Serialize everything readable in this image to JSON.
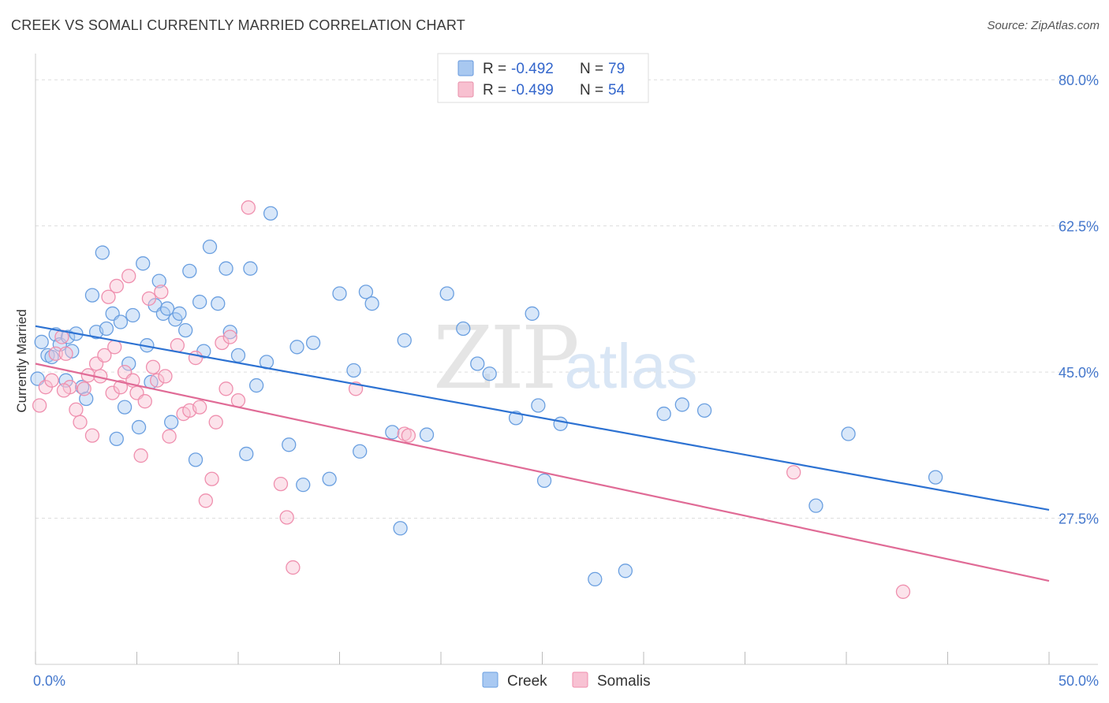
{
  "header": {
    "title": "CREEK VS SOMALI CURRENTLY MARRIED CORRELATION CHART",
    "source": "Source: ZipAtlas.com"
  },
  "watermark": {
    "zip": "ZIP",
    "atlas": "atlas"
  },
  "legend": {
    "rows": [
      {
        "r_label": "R = ",
        "r_value": "-0.492",
        "n_label": "N = ",
        "n_value": "79",
        "color": "#a8c8f0",
        "stroke": "#6699dd"
      },
      {
        "r_label": "R = ",
        "r_value": "-0.499",
        "n_label": "N = ",
        "n_value": "54",
        "color": "#f8c0d0",
        "stroke": "#e890aa"
      }
    ]
  },
  "chart_data": {
    "type": "scatter",
    "title": "CREEK VS SOMALI CURRENTLY MARRIED CORRELATION CHART",
    "ylabel": "Currently Married",
    "xlabel": "",
    "xlim": [
      0,
      50
    ],
    "ylim": [
      10,
      82
    ],
    "x_tick_labels": [
      "0.0%",
      "50.0%"
    ],
    "y_ticks": [
      27.5,
      45.0,
      62.5,
      80.0
    ],
    "y_tick_labels": [
      "27.5%",
      "45.0%",
      "62.5%",
      "80.0%"
    ],
    "grid": true,
    "legend_position": "top-center",
    "series": [
      {
        "name": "Creek",
        "color": "#6a9fe0",
        "fill": "#a9c9f2",
        "trend": {
          "x": [
            0,
            50
          ],
          "y": [
            50.5,
            28.5
          ],
          "color": "#2d72d2"
        },
        "points": [
          [
            0.1,
            44.2
          ],
          [
            0.3,
            48.6
          ],
          [
            0.6,
            47.0
          ],
          [
            0.8,
            46.8
          ],
          [
            1.0,
            49.5
          ],
          [
            1.2,
            48.3
          ],
          [
            1.5,
            44.0
          ],
          [
            1.6,
            49.2
          ],
          [
            1.8,
            47.5
          ],
          [
            2.0,
            49.6
          ],
          [
            2.3,
            43.2
          ],
          [
            2.5,
            41.8
          ],
          [
            2.8,
            54.2
          ],
          [
            3.0,
            49.8
          ],
          [
            3.3,
            59.3
          ],
          [
            3.5,
            50.2
          ],
          [
            3.8,
            52.0
          ],
          [
            4.0,
            37.0
          ],
          [
            4.2,
            51.0
          ],
          [
            4.4,
            40.8
          ],
          [
            4.6,
            46.0
          ],
          [
            4.8,
            51.8
          ],
          [
            5.1,
            38.4
          ],
          [
            5.3,
            58.0
          ],
          [
            5.5,
            48.2
          ],
          [
            5.7,
            43.8
          ],
          [
            5.9,
            53.0
          ],
          [
            6.1,
            55.9
          ],
          [
            6.3,
            52.0
          ],
          [
            6.5,
            52.6
          ],
          [
            6.7,
            39.0
          ],
          [
            6.9,
            51.3
          ],
          [
            7.1,
            52.0
          ],
          [
            7.4,
            50.0
          ],
          [
            7.6,
            57.1
          ],
          [
            7.9,
            34.5
          ],
          [
            8.1,
            53.4
          ],
          [
            8.3,
            47.5
          ],
          [
            8.6,
            60.0
          ],
          [
            9.0,
            53.2
          ],
          [
            9.4,
            57.4
          ],
          [
            9.6,
            49.8
          ],
          [
            10.0,
            47.0
          ],
          [
            10.4,
            35.2
          ],
          [
            10.6,
            57.4
          ],
          [
            10.9,
            43.4
          ],
          [
            11.4,
            46.2
          ],
          [
            11.6,
            64.0
          ],
          [
            12.5,
            36.3
          ],
          [
            12.9,
            48.0
          ],
          [
            13.2,
            31.5
          ],
          [
            13.7,
            48.5
          ],
          [
            14.5,
            32.2
          ],
          [
            15.0,
            54.4
          ],
          [
            15.7,
            45.2
          ],
          [
            16.0,
            35.5
          ],
          [
            16.3,
            54.6
          ],
          [
            16.6,
            53.2
          ],
          [
            17.6,
            37.8
          ],
          [
            18.0,
            26.3
          ],
          [
            18.2,
            48.8
          ],
          [
            19.3,
            37.5
          ],
          [
            20.3,
            54.4
          ],
          [
            21.1,
            50.2
          ],
          [
            21.8,
            46.0
          ],
          [
            22.4,
            44.8
          ],
          [
            23.7,
            39.5
          ],
          [
            24.5,
            52.0
          ],
          [
            24.8,
            41.0
          ],
          [
            25.1,
            32.0
          ],
          [
            25.9,
            38.8
          ],
          [
            27.6,
            20.2
          ],
          [
            29.1,
            21.2
          ],
          [
            31.0,
            40.0
          ],
          [
            31.9,
            41.1
          ],
          [
            33.0,
            40.4
          ],
          [
            40.1,
            37.6
          ],
          [
            38.5,
            29.0
          ],
          [
            44.4,
            32.4
          ]
        ]
      },
      {
        "name": "Somalis",
        "color": "#ef8fae",
        "fill": "#f8c2d3",
        "trend": {
          "x": [
            0,
            50
          ],
          "y": [
            46.0,
            20.0
          ],
          "color": "#e06b96"
        },
        "points": [
          [
            0.2,
            41.0
          ],
          [
            0.5,
            43.2
          ],
          [
            0.8,
            44.0
          ],
          [
            1.0,
            47.2
          ],
          [
            1.3,
            49.2
          ],
          [
            1.5,
            47.2
          ],
          [
            1.7,
            43.2
          ],
          [
            2.0,
            40.5
          ],
          [
            2.2,
            39.0
          ],
          [
            2.4,
            43.0
          ],
          [
            2.6,
            44.6
          ],
          [
            2.8,
            37.4
          ],
          [
            3.0,
            46.0
          ],
          [
            3.2,
            44.5
          ],
          [
            3.4,
            47.0
          ],
          [
            3.6,
            54.0
          ],
          [
            3.8,
            42.5
          ],
          [
            4.0,
            55.3
          ],
          [
            4.2,
            43.2
          ],
          [
            4.4,
            45.0
          ],
          [
            4.6,
            56.5
          ],
          [
            4.8,
            44.0
          ],
          [
            5.0,
            42.5
          ],
          [
            5.2,
            35.0
          ],
          [
            5.4,
            41.5
          ],
          [
            5.6,
            53.8
          ],
          [
            5.8,
            45.6
          ],
          [
            6.0,
            44.0
          ],
          [
            6.2,
            54.6
          ],
          [
            6.4,
            44.5
          ],
          [
            6.6,
            37.3
          ],
          [
            7.0,
            48.2
          ],
          [
            7.3,
            40.0
          ],
          [
            7.6,
            40.4
          ],
          [
            7.9,
            46.7
          ],
          [
            8.1,
            40.8
          ],
          [
            8.4,
            29.6
          ],
          [
            8.7,
            32.2
          ],
          [
            8.9,
            39.0
          ],
          [
            9.2,
            48.5
          ],
          [
            9.4,
            43.0
          ],
          [
            9.6,
            49.2
          ],
          [
            10.0,
            41.6
          ],
          [
            10.5,
            64.7
          ],
          [
            12.1,
            31.6
          ],
          [
            12.4,
            27.6
          ],
          [
            12.7,
            21.6
          ],
          [
            15.8,
            43.0
          ],
          [
            18.2,
            37.6
          ],
          [
            18.4,
            37.4
          ],
          [
            37.4,
            33.0
          ],
          [
            42.8,
            18.7
          ],
          [
            1.4,
            42.8
          ],
          [
            3.9,
            48.0
          ]
        ]
      }
    ]
  },
  "bottom_legend": [
    {
      "label": "Creek"
    },
    {
      "label": "Somalis"
    }
  ]
}
